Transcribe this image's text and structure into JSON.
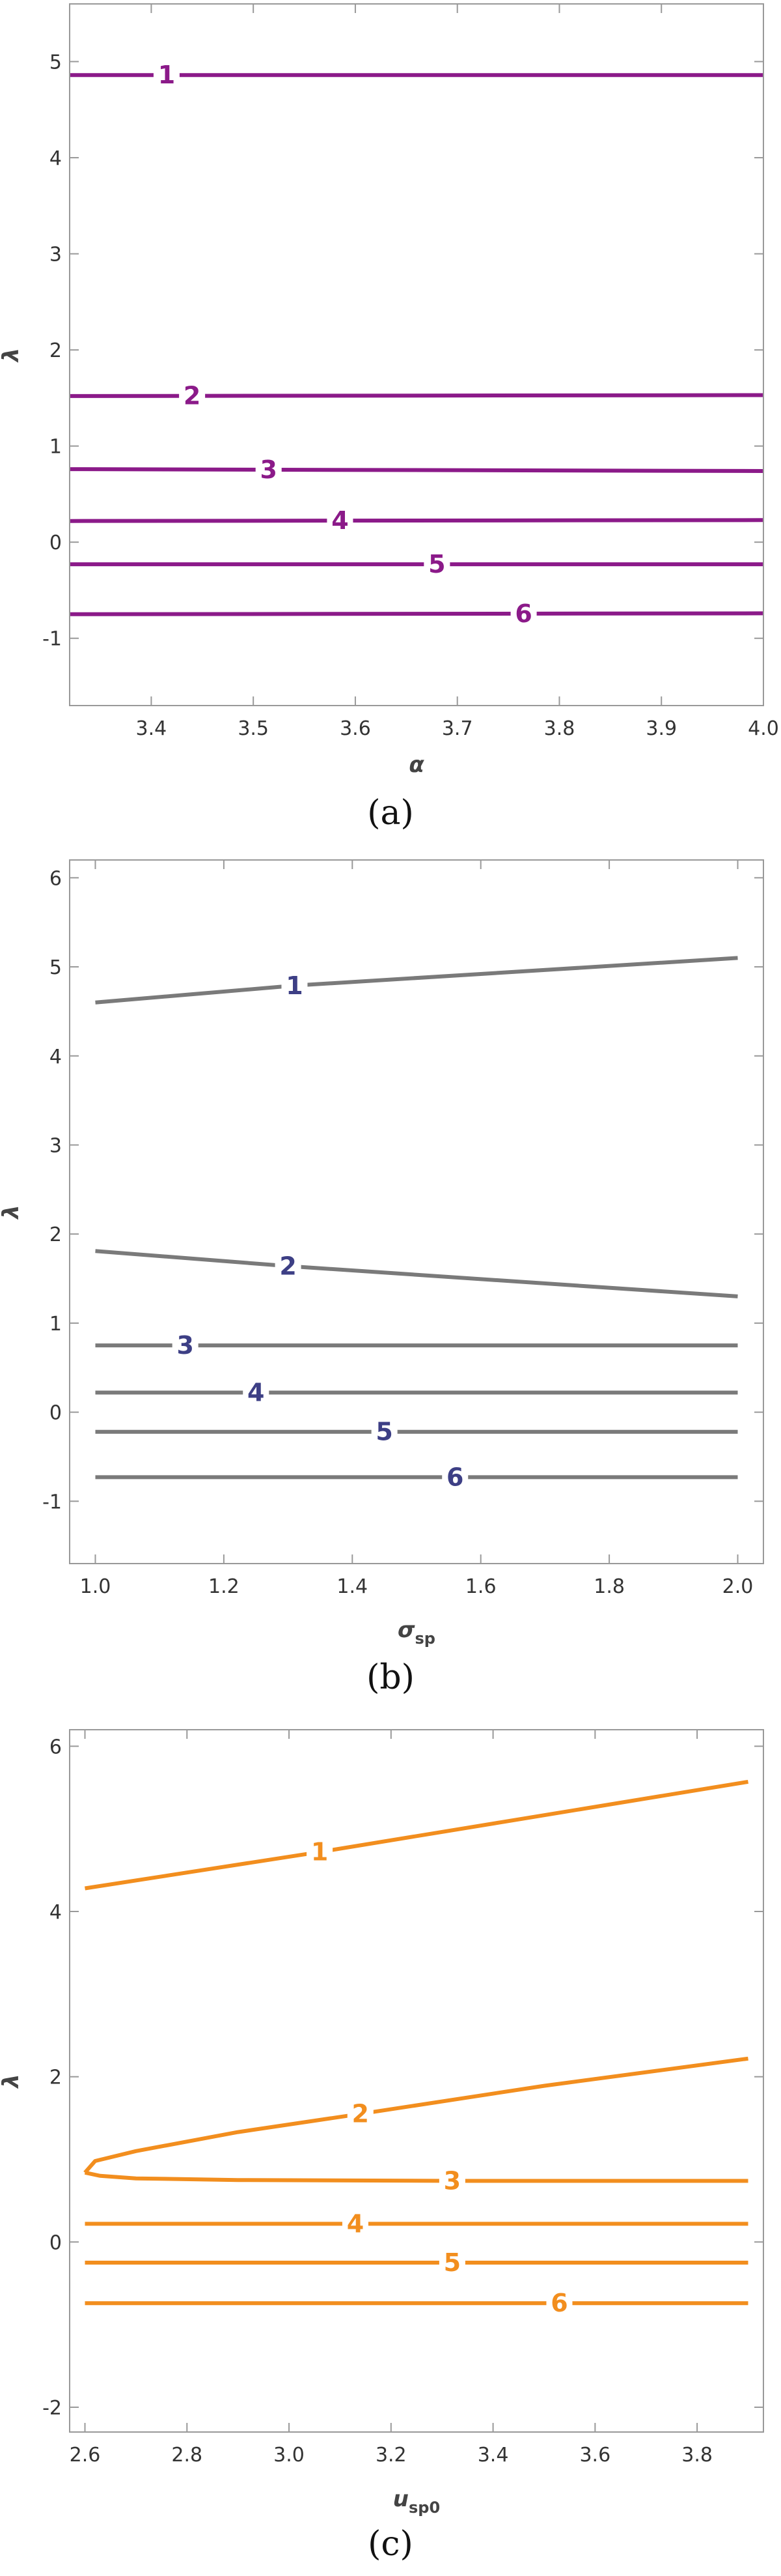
{
  "chart_data": [
    {
      "type": "line",
      "caption": "(a)",
      "xlabel": "α",
      "ylabel": "λ",
      "xlim": [
        3.32,
        4.0
      ],
      "ylim": [
        -1.7,
        5.6
      ],
      "xticks": [
        3.4,
        3.5,
        3.6,
        3.7,
        3.8,
        3.9,
        4.0
      ],
      "xtick_labels": [
        "3.4",
        "3.5",
        "3.6",
        "3.7",
        "3.8",
        "3.9",
        "4.0"
      ],
      "yticks": [
        -1,
        0,
        1,
        2,
        3,
        4,
        5
      ],
      "ytick_labels": [
        "-1",
        "0",
        "1",
        "2",
        "3",
        "4",
        "5"
      ],
      "colors": {
        "curve": "#8b1a89",
        "label": "#8b1a89"
      },
      "series": [
        {
          "label": "1",
          "label_x": 3.415,
          "points": [
            [
              3.32,
              4.86
            ],
            [
              4.0,
              4.86
            ]
          ]
        },
        {
          "label": "2",
          "label_x": 3.44,
          "points": [
            [
              3.32,
              1.52
            ],
            [
              4.0,
              1.53
            ]
          ]
        },
        {
          "label": "3",
          "label_x": 3.515,
          "points": [
            [
              3.32,
              0.76
            ],
            [
              4.0,
              0.74
            ]
          ]
        },
        {
          "label": "4",
          "label_x": 3.585,
          "points": [
            [
              3.32,
              0.22
            ],
            [
              4.0,
              0.23
            ]
          ]
        },
        {
          "label": "5",
          "label_x": 3.68,
          "points": [
            [
              3.32,
              -0.23
            ],
            [
              4.0,
              -0.23
            ]
          ]
        },
        {
          "label": "6",
          "label_x": 3.765,
          "points": [
            [
              3.32,
              -0.75
            ],
            [
              4.0,
              -0.74
            ]
          ]
        }
      ]
    },
    {
      "type": "line",
      "caption": "(b)",
      "xlabel": "σ",
      "xlabel_sub": "sp",
      "ylabel": "λ",
      "xlim": [
        0.96,
        2.04
      ],
      "ylim": [
        -1.7,
        6.2
      ],
      "xticks": [
        1.0,
        1.2,
        1.4,
        1.6,
        1.8,
        2.0
      ],
      "xtick_labels": [
        "1.0",
        "1.2",
        "1.4",
        "1.6",
        "1.8",
        "2.0"
      ],
      "yticks": [
        -1,
        0,
        1,
        2,
        3,
        4,
        5,
        6
      ],
      "ytick_labels": [
        "-1",
        "0",
        "1",
        "2",
        "3",
        "4",
        "5",
        "6"
      ],
      "colors": {
        "curve": "#7a7a7a",
        "label": "#3d3f85"
      },
      "series": [
        {
          "label": "1",
          "label_x": 1.31,
          "points": [
            [
              1.0,
              4.6
            ],
            [
              1.31,
              4.79
            ],
            [
              2.0,
              5.1
            ]
          ]
        },
        {
          "label": "2",
          "label_x": 1.3,
          "points": [
            [
              1.0,
              1.81
            ],
            [
              1.3,
              1.64
            ],
            [
              2.0,
              1.3
            ]
          ]
        },
        {
          "label": "3",
          "label_x": 1.14,
          "points": [
            [
              1.0,
              0.75
            ],
            [
              2.0,
              0.75
            ]
          ]
        },
        {
          "label": "4",
          "label_x": 1.25,
          "points": [
            [
              1.0,
              0.22
            ],
            [
              2.0,
              0.22
            ]
          ]
        },
        {
          "label": "5",
          "label_x": 1.45,
          "points": [
            [
              1.0,
              -0.22
            ],
            [
              2.0,
              -0.22
            ]
          ]
        },
        {
          "label": "6",
          "label_x": 1.56,
          "points": [
            [
              1.0,
              -0.73
            ],
            [
              2.0,
              -0.73
            ]
          ]
        }
      ]
    },
    {
      "type": "line",
      "caption": "(c)",
      "xlabel": "u",
      "xlabel_sub": "sp0",
      "ylabel": "λ",
      "xlim": [
        2.57,
        3.93
      ],
      "ylim": [
        -2.3,
        6.2
      ],
      "xticks": [
        2.6,
        2.8,
        3.0,
        3.2,
        3.4,
        3.6,
        3.8
      ],
      "xtick_labels": [
        "2.6",
        "2.8",
        "3.0",
        "3.2",
        "3.4",
        "3.6",
        "3.8"
      ],
      "yticks": [
        -2,
        0,
        2,
        4,
        6
      ],
      "ytick_labels": [
        "-2",
        "0",
        "2",
        "4",
        "6"
      ],
      "colors": {
        "curve": "#f28e1e",
        "label": "#f28e1e"
      },
      "series": [
        {
          "label": "1",
          "label_x": 3.06,
          "points": [
            [
              2.6,
              4.28
            ],
            [
              3.06,
              4.72
            ],
            [
              3.9,
              5.57
            ]
          ]
        },
        {
          "label": "2",
          "label_x": 3.14,
          "points": [
            [
              2.6,
              0.84
            ],
            [
              2.62,
              0.98
            ],
            [
              2.7,
              1.1
            ],
            [
              2.9,
              1.33
            ],
            [
              3.14,
              1.55
            ],
            [
              3.5,
              1.89
            ],
            [
              3.9,
              2.22
            ]
          ]
        },
        {
          "label": "3",
          "label_x": 3.32,
          "points": [
            [
              2.6,
              0.84
            ],
            [
              2.63,
              0.8
            ],
            [
              2.7,
              0.77
            ],
            [
              2.9,
              0.75
            ],
            [
              3.32,
              0.74
            ],
            [
              3.9,
              0.74
            ]
          ]
        },
        {
          "label": "4",
          "label_x": 3.13,
          "points": [
            [
              2.6,
              0.22
            ],
            [
              3.9,
              0.22
            ]
          ]
        },
        {
          "label": "5",
          "label_x": 3.32,
          "points": [
            [
              2.6,
              -0.25
            ],
            [
              3.9,
              -0.25
            ]
          ]
        },
        {
          "label": "6",
          "label_x": 3.53,
          "points": [
            [
              2.6,
              -0.74
            ],
            [
              3.9,
              -0.74
            ]
          ]
        }
      ]
    }
  ]
}
